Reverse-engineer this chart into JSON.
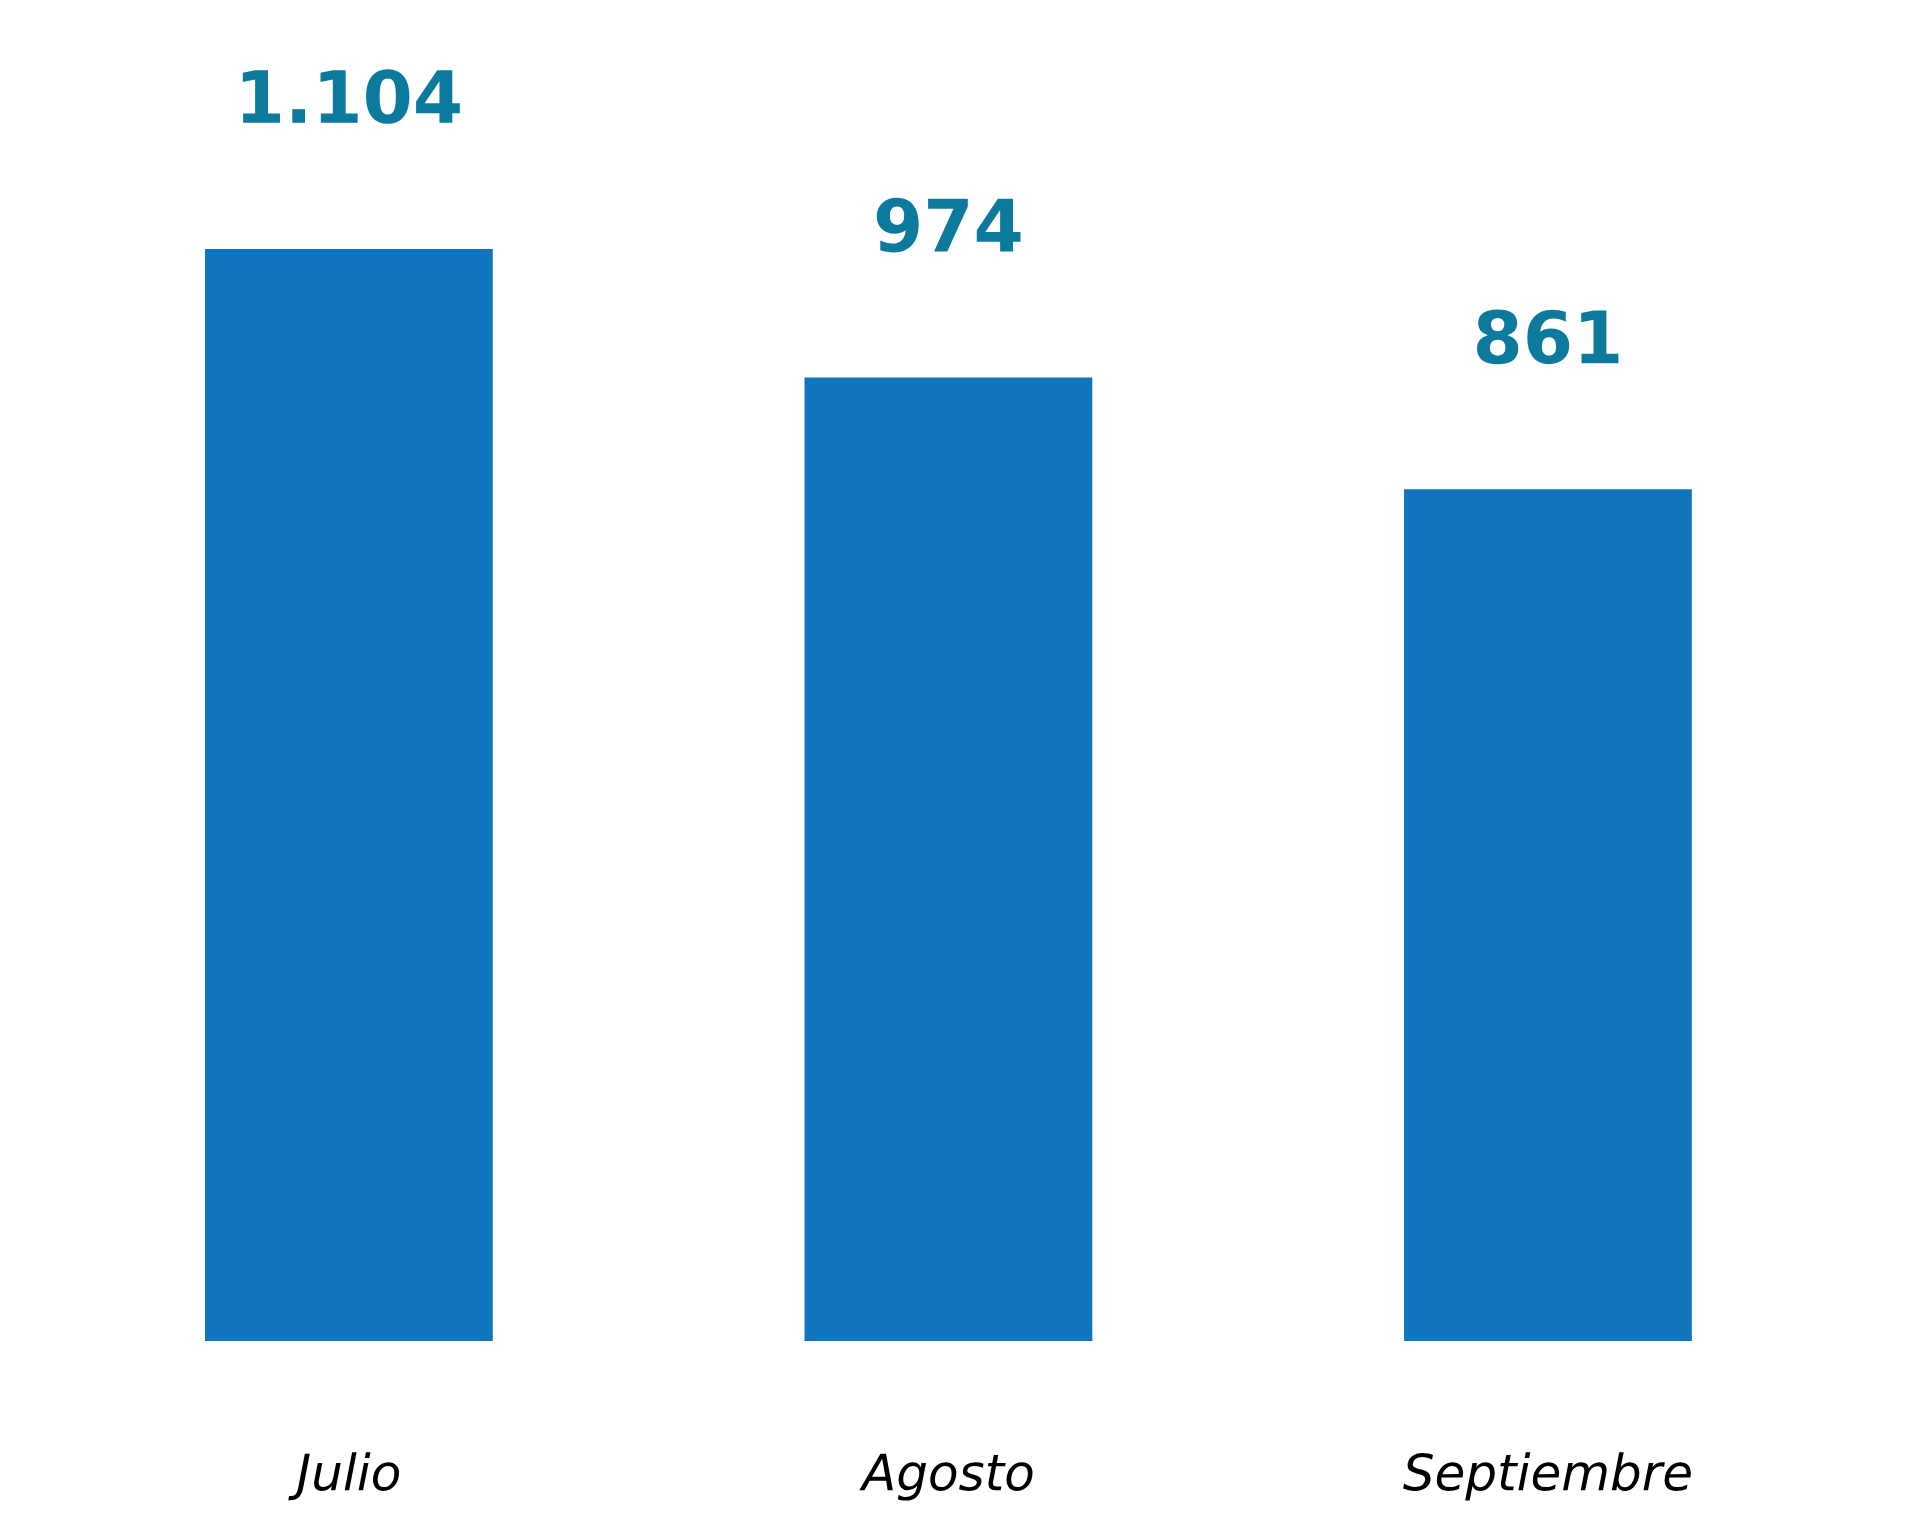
{
  "chart_data": {
    "type": "bar",
    "categories": [
      "Julio",
      "Agosto",
      "Septiembre"
    ],
    "values": [
      1104,
      974,
      861
    ],
    "value_labels": [
      "1.104",
      "974",
      "861"
    ],
    "color": "#1175bd"
  }
}
